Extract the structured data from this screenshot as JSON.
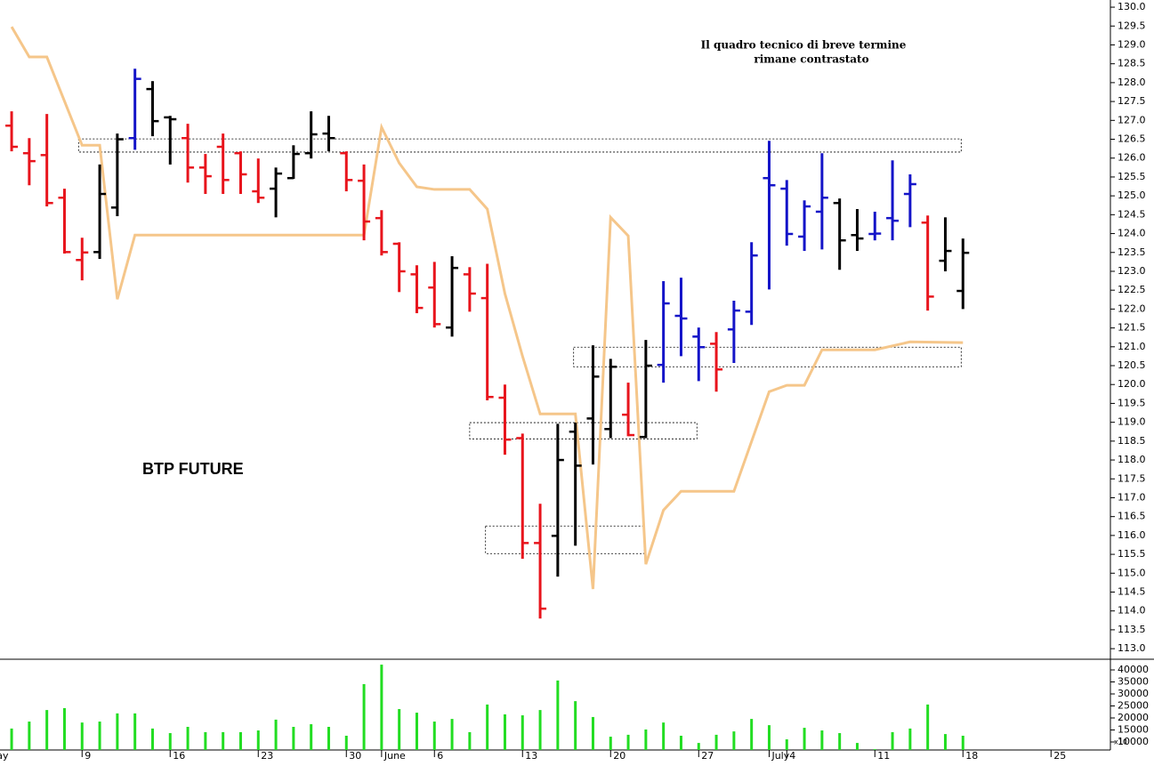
{
  "chart_data": [
    {
      "type": "ohlc",
      "x": [
        0,
        1,
        2,
        3,
        4,
        5,
        6,
        7,
        8,
        9,
        10,
        11,
        12,
        13,
        14,
        15,
        16,
        17,
        18,
        19,
        20,
        21,
        22,
        23,
        24,
        25,
        26,
        27,
        28,
        29,
        30,
        31,
        32,
        33,
        34,
        35,
        36,
        37,
        38,
        39,
        40,
        41,
        42,
        43,
        44,
        45,
        46,
        47,
        48,
        49,
        50,
        51,
        52,
        53,
        54
      ],
      "open": [
        126.86,
        126.13,
        126.08,
        124.95,
        123.3,
        123.51,
        124.69,
        126.53,
        127.83,
        127.08,
        126.53,
        125.75,
        126.3,
        126.13,
        125.12,
        125.19,
        125.47,
        126.13,
        126.65,
        126.13,
        125.4,
        124.41,
        123.73,
        122.92,
        122.57,
        121.51,
        122.92,
        122.29,
        119.65,
        118.58,
        115.8,
        115.99,
        118.75,
        119.1,
        118.82,
        119.2,
        118.61,
        120.52,
        121.82,
        121.27,
        121.08,
        121.46,
        121.93,
        125.47,
        125.19,
        123.92,
        124.58,
        124.81,
        123.96,
        123.99,
        124.41,
        125.05,
        124.29,
        123.28,
        122.48
      ],
      "high": [
        127.24,
        126.53,
        127.17,
        125.19,
        123.89,
        125.83,
        126.65,
        128.37,
        128.04,
        127.12,
        126.91,
        126.11,
        126.65,
        126.18,
        125.99,
        125.75,
        126.34,
        127.24,
        127.12,
        126.18,
        125.83,
        124.62,
        123.77,
        123.16,
        123.25,
        123.4,
        123.11,
        123.2,
        120.0,
        118.7,
        116.84,
        118.96,
        118.99,
        121.04,
        120.68,
        120.05,
        121.18,
        122.74,
        122.83,
        121.51,
        121.39,
        122.22,
        123.77,
        126.46,
        125.42,
        124.88,
        126.13,
        124.93,
        124.65,
        124.58,
        125.94,
        125.57,
        124.48,
        124.43,
        123.87
      ],
      "low": [
        126.18,
        125.28,
        124.72,
        123.47,
        122.76,
        123.33,
        124.46,
        126.22,
        126.58,
        125.83,
        125.35,
        125.05,
        125.05,
        125.05,
        124.81,
        124.43,
        125.45,
        125.99,
        126.18,
        125.12,
        123.82,
        123.42,
        122.45,
        121.89,
        121.51,
        121.27,
        121.93,
        119.58,
        118.14,
        115.38,
        113.8,
        114.91,
        115.73,
        117.88,
        118.58,
        118.63,
        118.58,
        120.05,
        120.75,
        120.09,
        119.81,
        120.57,
        121.58,
        122.52,
        123.68,
        123.54,
        123.58,
        123.04,
        123.54,
        123.82,
        123.82,
        124.17,
        121.96,
        123.0,
        122.0
      ],
      "close": [
        126.3,
        125.92,
        124.81,
        123.51,
        123.5,
        125.05,
        126.5,
        128.1,
        126.98,
        127.03,
        125.75,
        125.52,
        125.42,
        125.57,
        124.95,
        125.59,
        126.11,
        126.63,
        126.53,
        125.42,
        124.32,
        123.51,
        123.0,
        122.03,
        121.6,
        123.09,
        122.41,
        119.67,
        118.54,
        115.8,
        114.06,
        118.0,
        117.85,
        120.21,
        120.47,
        118.66,
        120.5,
        122.15,
        121.75,
        120.99,
        120.4,
        121.96,
        123.42,
        125.28,
        123.99,
        124.72,
        124.95,
        123.82,
        123.87,
        124.0,
        124.34,
        125.31,
        122.33,
        123.54,
        123.49
      ],
      "colors": [
        "#e8141c",
        "#e8141c",
        "#e8141c",
        "#e8141c",
        "#e8141c",
        "#000000",
        "#000000",
        "#1414c8",
        "#000000",
        "#000000",
        "#e8141c",
        "#e8141c",
        "#e8141c",
        "#e8141c",
        "#e8141c",
        "#000000",
        "#000000",
        "#000000",
        "#000000",
        "#e8141c",
        "#e8141c",
        "#e8141c",
        "#e8141c",
        "#e8141c",
        "#e8141c",
        "#000000",
        "#e8141c",
        "#e8141c",
        "#e8141c",
        "#e8141c",
        "#e8141c",
        "#000000",
        "#000000",
        "#000000",
        "#000000",
        "#e8141c",
        "#000000",
        "#1414c8",
        "#1414c8",
        "#1414c8",
        "#e8141c",
        "#1414c8",
        "#1414c8",
        "#1414c8",
        "#1414c8",
        "#1414c8",
        "#1414c8",
        "#000000",
        "#000000",
        "#1414c8",
        "#1414c8",
        "#1414c8",
        "#e8141c",
        "#000000",
        "#000000"
      ],
      "line": {
        "color": "#f5c68a",
        "x": [
          0,
          1,
          2,
          4,
          5,
          6,
          7,
          20,
          21,
          22,
          23,
          24,
          26,
          27,
          28,
          29,
          30,
          32,
          33,
          34,
          35,
          36,
          37,
          38,
          41,
          43,
          44,
          45,
          46,
          49,
          51,
          54
        ],
        "values": [
          129.48,
          128.68,
          128.68,
          126.34,
          126.34,
          122.26,
          123.96,
          123.96,
          126.82,
          125.87,
          125.24,
          125.17,
          125.17,
          124.65,
          122.41,
          120.75,
          119.22,
          119.22,
          114.58,
          124.43,
          123.94,
          115.24,
          116.67,
          117.17,
          117.17,
          119.81,
          119.98,
          119.98,
          120.92,
          120.92,
          121.13,
          121.11
        ]
      },
      "zones": [
        {
          "x": [
            3.8,
            53.9
          ],
          "y": [
            126.16,
            126.51
          ]
        },
        {
          "x": [
            31.9,
            53.9
          ],
          "y": [
            120.47,
            120.99
          ]
        },
        {
          "x": [
            26.0,
            38.9
          ],
          "y": [
            118.56,
            118.99
          ]
        },
        {
          "x": [
            26.9,
            35.9
          ],
          "y": [
            115.52,
            116.25
          ]
        }
      ],
      "annotations": [
        "Il quadro tecnico di breve termine",
        "rimane contrastato",
        "BTP FUTURE"
      ],
      "xlim": [
        -0.66,
        62.37
      ],
      "ylim": [
        112.72,
        130.19
      ],
      "yticks": [
        {
          "value": 113,
          "label": "113.0"
        },
        {
          "value": 113.5,
          "label": "113.5"
        },
        {
          "value": 114,
          "label": "114.0"
        },
        {
          "value": 114.5,
          "label": "114.5"
        },
        {
          "value": 115,
          "label": "115.0"
        },
        {
          "value": 115.5,
          "label": "115.5"
        },
        {
          "value": 116,
          "label": "116.0"
        },
        {
          "value": 116.5,
          "label": "116.5"
        },
        {
          "value": 117,
          "label": "117.0"
        },
        {
          "value": 117.5,
          "label": "117.5"
        },
        {
          "value": 118,
          "label": "118.0"
        },
        {
          "value": 118.5,
          "label": "118.5"
        },
        {
          "value": 119,
          "label": "119.0"
        },
        {
          "value": 119.5,
          "label": "119.5"
        },
        {
          "value": 120,
          "label": "120.0"
        },
        {
          "value": 120.5,
          "label": "120.5"
        },
        {
          "value": 121,
          "label": "121.0"
        },
        {
          "value": 121.5,
          "label": "121.5"
        },
        {
          "value": 122,
          "label": "122.0"
        },
        {
          "value": 122.5,
          "label": "122.5"
        },
        {
          "value": 123,
          "label": "123.0"
        },
        {
          "value": 123.5,
          "label": "123.5"
        },
        {
          "value": 124,
          "label": "124.0"
        },
        {
          "value": 124.5,
          "label": "124.5"
        },
        {
          "value": 125,
          "label": "125.0"
        },
        {
          "value": 125.5,
          "label": "125.5"
        },
        {
          "value": 126,
          "label": "126.0"
        },
        {
          "value": 126.5,
          "label": "126.5"
        },
        {
          "value": 127,
          "label": "127.0"
        },
        {
          "value": 127.5,
          "label": "127.5"
        },
        {
          "value": 128,
          "label": "128.0"
        },
        {
          "value": 128.5,
          "label": "128.5"
        },
        {
          "value": 129,
          "label": "129.0"
        },
        {
          "value": 129.5,
          "label": "129.5"
        },
        {
          "value": 130,
          "label": "130.0"
        }
      ]
    },
    {
      "type": "bar",
      "x": [
        0,
        1,
        2,
        3,
        4,
        5,
        6,
        7,
        8,
        9,
        10,
        11,
        12,
        13,
        14,
        15,
        16,
        17,
        18,
        19,
        20,
        21,
        22,
        23,
        24,
        25,
        26,
        27,
        28,
        29,
        30,
        31,
        32,
        33,
        34,
        35,
        36,
        37,
        38,
        39,
        40,
        41,
        42,
        43,
        44,
        45,
        46,
        47,
        48,
        49,
        50,
        51,
        52,
        53,
        54
      ],
      "values": [
        15600,
        18500,
        23300,
        24100,
        18100,
        18500,
        21900,
        21900,
        15600,
        13700,
        16300,
        14100,
        14100,
        14100,
        14800,
        19300,
        16300,
        17400,
        16300,
        12600,
        34100,
        42200,
        23700,
        22200,
        18500,
        19600,
        14100,
        25600,
        21500,
        21100,
        23300,
        35600,
        27000,
        20400,
        12200,
        13000,
        15200,
        18100,
        12600,
        9600,
        13000,
        14400,
        19600,
        17000,
        11100,
        15900,
        14800,
        13700,
        9600,
        7000,
        14100,
        15600,
        25600,
        13300,
        12600
      ],
      "color": "#22dd22",
      "scale_note": "x10",
      "xlim": [
        -0.66,
        62.37
      ],
      "ylim": [
        6670,
        44450
      ],
      "yticks": [
        10000,
        15000,
        20000,
        25000,
        30000,
        35000,
        40000
      ],
      "xticks": [
        {
          "value": -1,
          "label": "ay"
        },
        {
          "value": 4,
          "label": "9"
        },
        {
          "value": 9,
          "label": "16"
        },
        {
          "value": 14,
          "label": "23"
        },
        {
          "value": 19,
          "label": "30"
        },
        {
          "value": 21,
          "label": "June"
        },
        {
          "value": 24,
          "label": "6"
        },
        {
          "value": 29,
          "label": "13"
        },
        {
          "value": 34,
          "label": "20"
        },
        {
          "value": 39,
          "label": "27"
        },
        {
          "value": 43,
          "label": "July"
        },
        {
          "value": 44,
          "label": "4"
        },
        {
          "value": 49,
          "label": "11"
        },
        {
          "value": 54,
          "label": "18"
        },
        {
          "value": 59,
          "label": "25"
        }
      ]
    }
  ]
}
